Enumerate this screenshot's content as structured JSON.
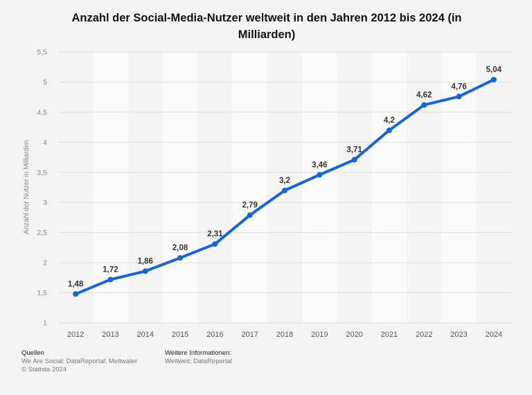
{
  "title": "Anzahl der Social-Media-Nutzer weltweit in den Jahren 2012 bis 2024 (in Milliarden)",
  "chart_data": {
    "type": "line",
    "title": "Anzahl der Social-Media-Nutzer weltweit in den Jahren 2012 bis 2024 (in Milliarden)",
    "xlabel": "",
    "ylabel": "Anzahl der Nutzer in Milliarden",
    "categories": [
      "2012",
      "2013",
      "2014",
      "2015",
      "2016",
      "2017",
      "2018",
      "2019",
      "2020",
      "2021",
      "2022",
      "2023",
      "2024"
    ],
    "values": [
      1.48,
      1.72,
      1.86,
      2.08,
      2.31,
      2.79,
      3.2,
      3.46,
      3.71,
      4.2,
      4.62,
      4.76,
      5.04
    ],
    "value_labels": [
      "1,48",
      "1,72",
      "1,86",
      "2,08",
      "2,31",
      "2,79",
      "3,2",
      "3,46",
      "3,71",
      "4,2",
      "4,62",
      "4,76",
      "5,04"
    ],
    "ylim": [
      1,
      5.5
    ],
    "yticks": [
      1,
      1.5,
      2,
      2.5,
      3,
      3.5,
      4,
      4.5,
      5,
      5.5
    ],
    "ytick_labels": [
      "1",
      "1,5",
      "2",
      "2,5",
      "3",
      "3,5",
      "4",
      "4,5",
      "5",
      "5,5"
    ],
    "grid": true,
    "line_color": "#1565d8"
  },
  "footer": {
    "sources_heading": "Quellen",
    "sources": "We Are Social; DataReportal; Meltwater",
    "copyright": "© Statista 2024",
    "info_heading": "Weitere Informationen:",
    "info": "Weltweit; DataReportal"
  }
}
